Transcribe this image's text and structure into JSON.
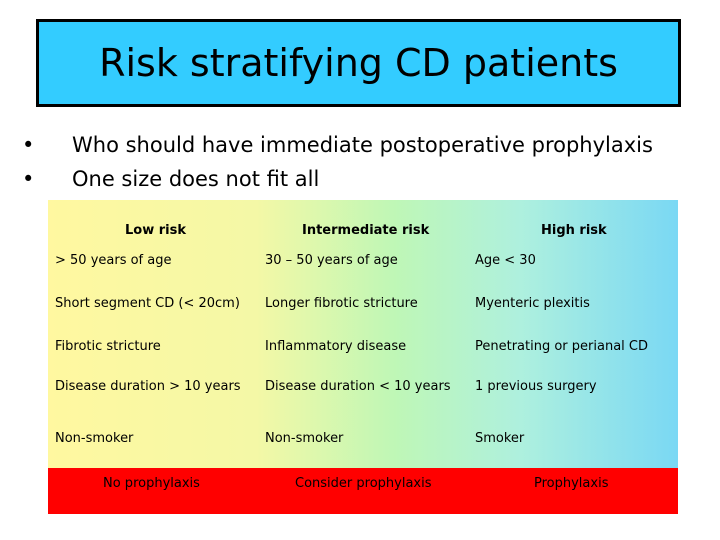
{
  "title": "Risk stratifying CD patients",
  "bullets": [
    "Who should have immediate postoperative prophylaxis",
    "One size does not fit all"
  ],
  "table": {
    "headers": [
      "Low risk",
      "Intermediate risk",
      "High risk"
    ],
    "rows": [
      [
        "> 50 years of age",
        "30 – 50 years of age",
        "Age < 30"
      ],
      [
        "Short segment CD (< 20cm)",
        "Longer fibrotic stricture",
        "Myenteric plexitis"
      ],
      [
        "Fibrotic stricture",
        "Inflammatory disease",
        "Penetrating or perianal CD"
      ],
      [
        "Disease duration > 10 years",
        "Disease duration < 10 years",
        "1 previous surgery"
      ],
      [
        "Non-smoker",
        "Non-smoker",
        "Smoker"
      ]
    ],
    "footer": [
      "No prophylaxis",
      "Consider prophylaxis",
      "Prophylaxis"
    ]
  },
  "colors": {
    "title_bg": "#33ccff",
    "footer_bg": "#ff0000"
  }
}
